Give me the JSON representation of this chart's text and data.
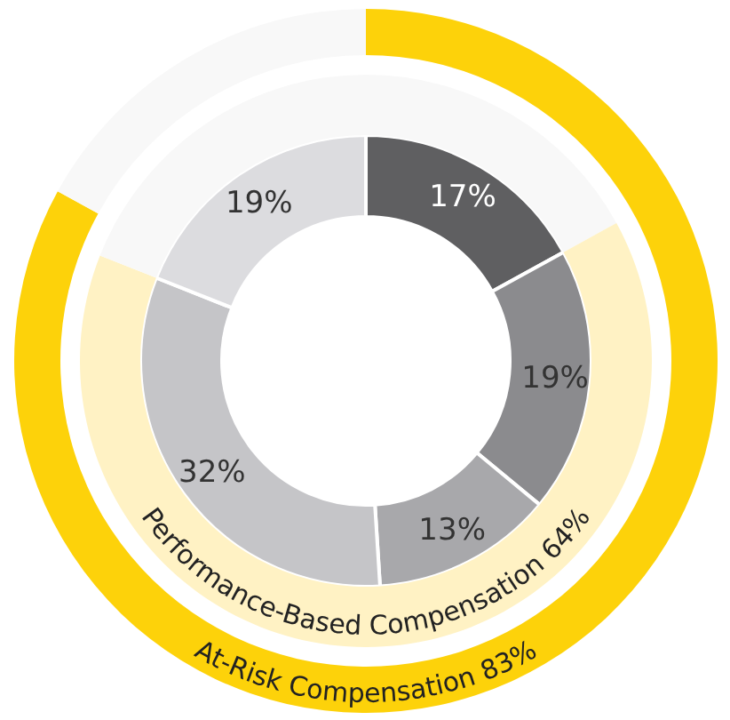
{
  "chart_data": [
    {
      "type": "donut",
      "categories": [
        null,
        null,
        null,
        null,
        null
      ],
      "values": [
        17,
        19,
        13,
        32,
        19
      ],
      "value_labels": [
        "17%",
        "19%",
        "13%",
        "32%",
        "19%"
      ],
      "colors": [
        "#5f5f61",
        "#8b8b8e",
        "#a8a8ab",
        "#c5c5c8",
        "#dcdcdf"
      ]
    },
    {
      "type": "donut",
      "categories": [
        null,
        "Performance-Based Compensation 64%",
        null
      ],
      "values": [
        17,
        64,
        19
      ],
      "colors": [
        "#f8f8f8",
        "#fff2c4",
        "#f8f8f8"
      ]
    },
    {
      "type": "donut",
      "categories": [
        "At-Risk Compensation 83%",
        null
      ],
      "values": [
        83,
        17
      ],
      "colors": [
        "#fdd20a",
        "#f8f8f8"
      ]
    }
  ]
}
